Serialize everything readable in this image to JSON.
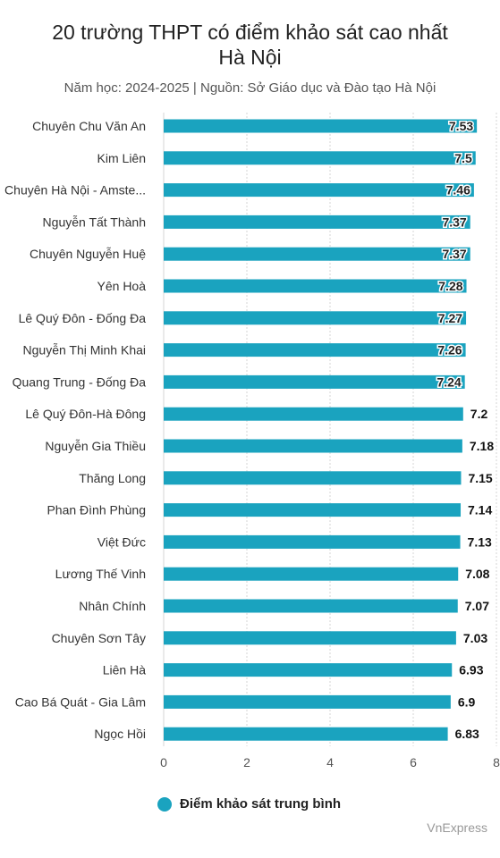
{
  "chart_data": {
    "type": "bar",
    "orientation": "horizontal",
    "title_lines": [
      "20 trường THPT có điểm khảo sát cao nhất",
      "Hà Nội"
    ],
    "subtitle": "Năm học: 2024-2025 | Nguồn: Sở Giáo dục và Đào tạo Hà Nội",
    "categories": [
      "Chuyên Chu Văn An",
      "Kim Liên",
      "Chuyên Hà Nội - Amste...",
      "Nguyễn Tất Thành",
      "Chuyên Nguyễn Huệ",
      "Yên Hoà",
      "Lê Quý Đôn - Đống Đa",
      "Nguyễn Thị Minh Khai",
      "Quang Trung - Đống Đa",
      "Lê Quý Đôn-Hà Đông",
      "Nguyễn Gia Thiều",
      "Thăng Long",
      "Phan Đình Phùng",
      "Việt Đức",
      "Lương Thế Vinh",
      "Nhân Chính",
      "Chuyên Sơn Tây",
      "Liên Hà",
      "Cao Bá Quát - Gia Lâm",
      "Ngọc Hồi"
    ],
    "value_labels": [
      "7.53",
      "7.5",
      "7.46",
      "7.37",
      "7.37",
      "7.28",
      "7.27",
      "7.26",
      "7.24",
      "7.2",
      "7.18",
      "7.15",
      "7.14",
      "7.13",
      "7.08",
      "7.07",
      "7.03",
      "6.93",
      "6.9",
      "6.83"
    ],
    "series": [
      {
        "name": "Điểm khảo sát trung bình",
        "color": "#1aa3bf",
        "values": [
          7.53,
          7.5,
          7.46,
          7.37,
          7.37,
          7.28,
          7.27,
          7.26,
          7.24,
          7.2,
          7.18,
          7.15,
          7.14,
          7.13,
          7.08,
          7.07,
          7.03,
          6.93,
          6.9,
          6.83
        ]
      }
    ],
    "labels_inside_bar_count": 9,
    "xlim": [
      0,
      8
    ],
    "xticks": [
      "0",
      "2",
      "4",
      "6",
      "8"
    ],
    "grid": true,
    "legend_position": "bottom"
  },
  "source_credit": "VnExpress"
}
